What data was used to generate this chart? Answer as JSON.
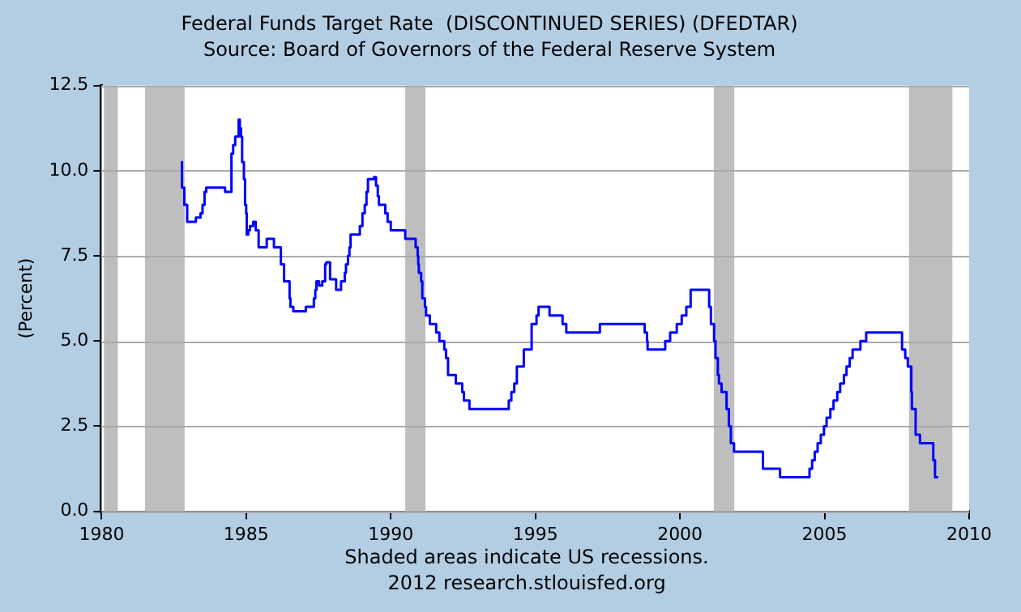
{
  "chart_data": {
    "type": "step",
    "title": "Federal Funds Target Rate  (DISCONTINUED SERIES) (DFEDTAR)",
    "subtitle": "Source: Board of Governors of the Federal Reserve System",
    "ylabel": "(Percent)",
    "annotations": [
      "Shaded areas indicate US recessions.",
      "2012 research.stlouisfed.org"
    ],
    "xlim": [
      1980,
      2010
    ],
    "xticks": [
      1980,
      1985,
      1990,
      1995,
      2000,
      2005,
      2010
    ],
    "ylim": [
      0,
      12.5
    ],
    "yticks": [
      {
        "value": 0,
        "label": "0.0"
      },
      2.5,
      {
        "value": 5,
        "label": "5.0"
      },
      7.5,
      {
        "value": 10,
        "label": "10.0"
      },
      12.5
    ],
    "grid": "y",
    "legend": false,
    "marker": "none",
    "line_style": "solid",
    "bands": [
      {
        "axis": "x",
        "from": 1980.08,
        "to": 1980.56,
        "color": "#bebebe"
      },
      {
        "axis": "x",
        "from": 1981.5,
        "to": 1982.87,
        "color": "#bebebe"
      },
      {
        "axis": "x",
        "from": 1990.5,
        "to": 1991.2,
        "color": "#bebebe"
      },
      {
        "axis": "x",
        "from": 2001.17,
        "to": 2001.88,
        "color": "#bebebe"
      },
      {
        "axis": "x",
        "from": 2007.92,
        "to": 2009.42,
        "color": "#bebebe"
      }
    ],
    "series": [
      {
        "color": "#0000ff",
        "x": [
          1982.74,
          1982.78,
          1982.86,
          1982.96,
          1983.26,
          1983.42,
          1983.49,
          1983.56,
          1983.62,
          1984.27,
          1984.49,
          1984.55,
          1984.62,
          1984.74,
          1984.78,
          1984.82,
          1984.86,
          1984.92,
          1984.96,
          1985.0,
          1985.02,
          1985.07,
          1985.13,
          1985.24,
          1985.33,
          1985.43,
          1985.71,
          1985.96,
          1986.2,
          1986.31,
          1986.5,
          1986.53,
          1986.63,
          1987.06,
          1987.34,
          1987.39,
          1987.43,
          1987.52,
          1987.63,
          1987.73,
          1987.77,
          1987.9,
          1988.11,
          1988.28,
          1988.41,
          1988.45,
          1988.52,
          1988.57,
          1988.61,
          1988.93,
          1989.02,
          1989.1,
          1989.16,
          1989.21,
          1989.42,
          1989.49,
          1989.55,
          1989.59,
          1989.81,
          1989.89,
          1990.0,
          1990.5,
          1990.86,
          1990.93,
          1990.95,
          1990.97,
          1991.05,
          1991.09,
          1991.18,
          1991.22,
          1991.35,
          1991.57,
          1991.68,
          1991.85,
          1991.91,
          1991.98,
          1992.25,
          1992.47,
          1992.53,
          1992.72,
          1994.08,
          1994.17,
          1994.27,
          1994.36,
          1994.6,
          1994.87,
          1995.04,
          1995.11,
          1995.49,
          1995.94,
          1996.07,
          1997.23,
          1998.78,
          1998.86,
          1998.88,
          1999.49,
          1999.66,
          1999.89,
          2000.06,
          2000.22,
          2000.37,
          2001.01,
          2001.07,
          2001.18,
          2001.23,
          2001.31,
          2001.35,
          2001.44,
          2001.61,
          2001.69,
          2001.76,
          2001.87,
          2002.87,
          2003.46,
          2004.48,
          2004.57,
          2004.66,
          2004.76,
          2004.87,
          2004.98,
          2005.07,
          2005.2,
          2005.31,
          2005.44,
          2005.54,
          2005.67,
          2005.76,
          2005.87,
          2005.97,
          2006.24,
          2006.44,
          2007.68,
          2007.79,
          2007.88,
          2008.0,
          2008.02,
          2008.15,
          2008.3,
          2008.76,
          2008.82,
          2008.93
        ],
        "values": [
          10.25,
          9.5,
          9.0,
          8.5,
          8.625,
          8.75,
          9.0,
          9.375,
          9.5,
          9.375,
          10.5,
          10.75,
          11.0,
          11.5,
          11.25,
          11.0,
          10.25,
          9.75,
          9.0,
          8.75,
          8.125,
          8.25,
          8.375,
          8.5,
          8.25,
          7.75,
          8.0,
          7.75,
          7.25,
          6.75,
          6.25,
          6.0,
          5.875,
          6.0,
          6.25,
          6.5,
          6.75,
          6.625,
          6.75,
          7.25,
          7.3125,
          6.8125,
          6.5,
          6.75,
          7.0,
          7.25,
          7.5,
          7.75,
          8.125,
          8.375,
          8.75,
          9.0,
          9.375,
          9.75,
          9.8125,
          9.5625,
          9.25,
          9.0,
          8.75,
          8.5,
          8.25,
          8.0,
          7.75,
          7.5,
          7.25,
          7.0,
          6.75,
          6.25,
          6.0,
          5.75,
          5.5,
          5.25,
          5.0,
          4.75,
          4.5,
          4.0,
          3.75,
          3.5,
          3.25,
          3.0,
          3.25,
          3.5,
          3.75,
          4.25,
          4.75,
          5.5,
          5.75,
          6.0,
          5.75,
          5.5,
          5.25,
          5.5,
          5.25,
          5.0,
          4.75,
          5.0,
          5.25,
          5.5,
          5.75,
          6.0,
          6.5,
          6.0,
          5.5,
          5.0,
          4.5,
          4.0,
          3.75,
          3.5,
          3.0,
          2.5,
          2.0,
          1.75,
          1.25,
          1.0,
          1.25,
          1.5,
          1.75,
          2.0,
          2.25,
          2.5,
          2.75,
          3.0,
          3.25,
          3.5,
          3.75,
          4.0,
          4.25,
          4.5,
          4.75,
          5.0,
          5.25,
          4.75,
          4.5,
          4.25,
          3.5,
          3.0,
          2.25,
          2.0,
          1.5,
          1.0,
          1.0
        ]
      }
    ]
  }
}
